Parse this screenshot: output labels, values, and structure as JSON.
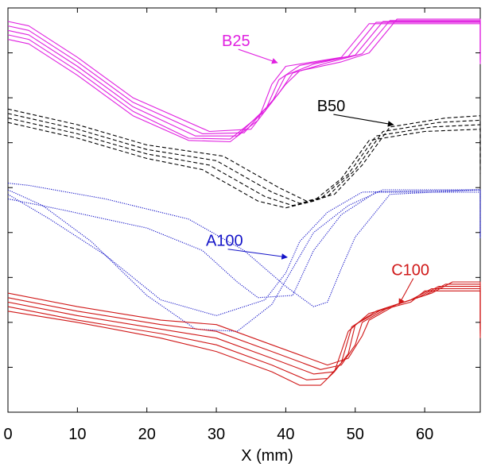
{
  "chart_data": {
    "type": "line",
    "title": "",
    "xlabel": "X (mm)",
    "ylabel": "",
    "xlim": [
      0,
      68
    ],
    "ylim": [
      0,
      9
    ],
    "x_ticks": [
      0,
      10,
      20,
      30,
      40,
      50,
      60
    ],
    "y_ticks": [
      1,
      2,
      3,
      4,
      5,
      6,
      7,
      8
    ],
    "grid": false,
    "legend": "none",
    "groups": [
      {
        "label": "B25",
        "color": "#e020e0",
        "dash": "solid",
        "label_at": [
          30.8,
          8.15
        ],
        "arrow_to": [
          38.8,
          7.78
        ],
        "curves": [
          [
            [
              0,
              8.3
            ],
            [
              3,
              8.2
            ],
            [
              10,
              7.5
            ],
            [
              18,
              6.6
            ],
            [
              26,
              6.05
            ],
            [
              32,
              6.02
            ],
            [
              36,
              6.5
            ],
            [
              38,
              7.3
            ],
            [
              40,
              7.7
            ],
            [
              48,
              7.9
            ],
            [
              52,
              8.65
            ],
            [
              68,
              8.65
            ],
            [
              68,
              7.75
            ]
          ],
          [
            [
              0,
              8.4
            ],
            [
              3,
              8.3
            ],
            [
              10,
              7.6
            ],
            [
              18,
              6.7
            ],
            [
              26,
              6.1
            ],
            [
              32,
              6.08
            ],
            [
              37,
              6.7
            ],
            [
              39,
              7.4
            ],
            [
              42,
              7.72
            ],
            [
              49,
              7.92
            ],
            [
              53,
              8.68
            ],
            [
              68,
              8.68
            ],
            [
              68,
              7.78
            ]
          ],
          [
            [
              0,
              8.5
            ],
            [
              3,
              8.4
            ],
            [
              10,
              7.7
            ],
            [
              18,
              6.8
            ],
            [
              27,
              6.15
            ],
            [
              33,
              6.15
            ],
            [
              38,
              6.9
            ],
            [
              40,
              7.5
            ],
            [
              44,
              7.75
            ],
            [
              50,
              7.95
            ],
            [
              54,
              8.7
            ],
            [
              68,
              8.7
            ],
            [
              68,
              7.8
            ]
          ],
          [
            [
              0,
              8.6
            ],
            [
              3,
              8.5
            ],
            [
              10,
              7.8
            ],
            [
              18,
              6.9
            ],
            [
              28,
              6.2
            ],
            [
              34,
              6.22
            ],
            [
              39,
              7.1
            ],
            [
              41,
              7.55
            ],
            [
              46,
              7.78
            ],
            [
              51,
              7.98
            ],
            [
              55,
              8.72
            ],
            [
              68,
              8.72
            ],
            [
              68,
              7.83
            ]
          ],
          [
            [
              0,
              8.7
            ],
            [
              3,
              8.6
            ],
            [
              10,
              7.9
            ],
            [
              18,
              7.0
            ],
            [
              29,
              6.25
            ],
            [
              35,
              6.3
            ],
            [
              40,
              7.3
            ],
            [
              42,
              7.6
            ],
            [
              48,
              7.8
            ],
            [
              52,
              8.0
            ],
            [
              56,
              8.75
            ],
            [
              68,
              8.75
            ],
            [
              68,
              7.85
            ]
          ]
        ]
      },
      {
        "label": "B50",
        "color": "#000000",
        "dash": "dashed",
        "label_at": [
          44.5,
          6.7
        ],
        "arrow_to": [
          55.5,
          6.4
        ],
        "curves": [
          [
            [
              0,
              6.45
            ],
            [
              10,
              6.1
            ],
            [
              20,
              5.65
            ],
            [
              28,
              5.4
            ],
            [
              36,
              4.7
            ],
            [
              40,
              4.55
            ],
            [
              44,
              4.7
            ],
            [
              48,
              5.2
            ],
            [
              52,
              6.05
            ],
            [
              60,
              6.25
            ],
            [
              68,
              6.3
            ],
            [
              68,
              5.3
            ]
          ],
          [
            [
              0,
              6.55
            ],
            [
              10,
              6.2
            ],
            [
              20,
              5.75
            ],
            [
              29,
              5.5
            ],
            [
              37,
              4.8
            ],
            [
              41,
              4.6
            ],
            [
              45,
              4.75
            ],
            [
              49,
              5.3
            ],
            [
              53,
              6.15
            ],
            [
              61,
              6.35
            ],
            [
              68,
              6.4
            ],
            [
              68,
              5.4
            ]
          ],
          [
            [
              0,
              6.65
            ],
            [
              10,
              6.3
            ],
            [
              20,
              5.85
            ],
            [
              30,
              5.6
            ],
            [
              38,
              4.9
            ],
            [
              42,
              4.65
            ],
            [
              46,
              4.8
            ],
            [
              50,
              5.4
            ],
            [
              54,
              6.25
            ],
            [
              62,
              6.45
            ],
            [
              68,
              6.5
            ],
            [
              68,
              5.5
            ]
          ],
          [
            [
              0,
              6.75
            ],
            [
              10,
              6.4
            ],
            [
              20,
              5.95
            ],
            [
              31,
              5.7
            ],
            [
              39,
              5.0
            ],
            [
              43,
              4.7
            ],
            [
              47,
              4.85
            ],
            [
              51,
              5.5
            ],
            [
              55,
              6.35
            ],
            [
              63,
              6.55
            ],
            [
              68,
              6.6
            ],
            [
              68,
              5.6
            ]
          ]
        ]
      },
      {
        "label": "A100",
        "color": "#1414c8",
        "dash": "dotted",
        "label_at": [
          28.5,
          3.7
        ],
        "arrow_to": [
          40.2,
          3.45
        ],
        "curves": [
          [
            [
              0,
              4.75
            ],
            [
              8,
              4.5
            ],
            [
              20,
              4.1
            ],
            [
              28,
              3.6
            ],
            [
              33,
              2.9
            ],
            [
              36,
              2.55
            ],
            [
              41,
              2.6
            ],
            [
              44,
              3.6
            ],
            [
              48,
              4.4
            ],
            [
              53,
              4.9
            ],
            [
              68,
              4.9
            ],
            [
              68,
              3.85
            ]
          ],
          [
            [
              0,
              4.85
            ],
            [
              6,
              4.3
            ],
            [
              14,
              3.5
            ],
            [
              22,
              2.5
            ],
            [
              30,
              2.15
            ],
            [
              37,
              2.5
            ],
            [
              40,
              3.1
            ],
            [
              42,
              3.8
            ],
            [
              46,
              4.45
            ],
            [
              51,
              4.9
            ],
            [
              68,
              4.95
            ],
            [
              68,
              3.9
            ]
          ],
          [
            [
              0,
              4.95
            ],
            [
              5,
              4.6
            ],
            [
              12,
              3.8
            ],
            [
              20,
              2.6
            ],
            [
              27,
              1.85
            ],
            [
              33,
              1.8
            ],
            [
              38,
              2.4
            ],
            [
              41,
              3.2
            ],
            [
              44,
              4.0
            ],
            [
              49,
              4.6
            ],
            [
              54,
              4.95
            ],
            [
              68,
              4.95
            ],
            [
              68,
              3.9
            ]
          ],
          [
            [
              0,
              5.1
            ],
            [
              3,
              5.05
            ],
            [
              14,
              4.75
            ],
            [
              26,
              4.3
            ],
            [
              34,
              3.6
            ],
            [
              40,
              2.8
            ],
            [
              44,
              2.35
            ],
            [
              46,
              2.45
            ],
            [
              48,
              3.2
            ],
            [
              50,
              3.9
            ],
            [
              55,
              4.85
            ],
            [
              68,
              4.95
            ],
            [
              68,
              3.9
            ]
          ]
        ]
      },
      {
        "label": "C100",
        "color": "#d01818",
        "dash": "solid",
        "label_at": [
          55.2,
          3.05
        ],
        "arrow_to": [
          56.3,
          2.4
        ],
        "curves": [
          [
            [
              0,
              2.25
            ],
            [
              10,
              2.0
            ],
            [
              22,
              1.65
            ],
            [
              30,
              1.35
            ],
            [
              38,
              0.9
            ],
            [
              42,
              0.6
            ],
            [
              45,
              0.6
            ],
            [
              47,
              0.9
            ],
            [
              49,
              1.8
            ],
            [
              52,
              2.2
            ],
            [
              58,
              2.45
            ],
            [
              60,
              2.7
            ],
            [
              68,
              2.7
            ],
            [
              68,
              1.65
            ]
          ],
          [
            [
              0,
              2.35
            ],
            [
              10,
              2.05
            ],
            [
              22,
              1.75
            ],
            [
              30,
              1.5
            ],
            [
              38,
              1.05
            ],
            [
              43,
              0.72
            ],
            [
              46,
              0.75
            ],
            [
              48,
              1.1
            ],
            [
              49.5,
              1.9
            ],
            [
              53,
              2.25
            ],
            [
              58,
              2.5
            ],
            [
              61,
              2.75
            ],
            [
              68,
              2.75
            ],
            [
              68,
              1.7
            ]
          ],
          [
            [
              0,
              2.45
            ],
            [
              10,
              2.15
            ],
            [
              22,
              1.85
            ],
            [
              30,
              1.65
            ],
            [
              38,
              1.2
            ],
            [
              44,
              0.85
            ],
            [
              47,
              0.9
            ],
            [
              49,
              1.3
            ],
            [
              50,
              1.95
            ],
            [
              54,
              2.3
            ],
            [
              59,
              2.55
            ],
            [
              62,
              2.8
            ],
            [
              68,
              2.8
            ],
            [
              68,
              1.75
            ]
          ],
          [
            [
              0,
              2.55
            ],
            [
              10,
              2.25
            ],
            [
              22,
              1.95
            ],
            [
              30,
              1.8
            ],
            [
              38,
              1.35
            ],
            [
              45,
              0.95
            ],
            [
              48,
              1.05
            ],
            [
              50,
              1.5
            ],
            [
              51,
              2.0
            ],
            [
              55,
              2.35
            ],
            [
              60,
              2.6
            ],
            [
              63,
              2.85
            ],
            [
              68,
              2.85
            ],
            [
              68,
              1.8
            ]
          ],
          [
            [
              0,
              2.65
            ],
            [
              10,
              2.35
            ],
            [
              22,
              2.05
            ],
            [
              30,
              1.95
            ],
            [
              38,
              1.5
            ],
            [
              46,
              1.05
            ],
            [
              49,
              1.2
            ],
            [
              51,
              1.7
            ],
            [
              52,
              2.05
            ],
            [
              56,
              2.4
            ],
            [
              61,
              2.65
            ],
            [
              64,
              2.9
            ],
            [
              68,
              2.9
            ],
            [
              68,
              1.85
            ]
          ]
        ]
      }
    ]
  }
}
